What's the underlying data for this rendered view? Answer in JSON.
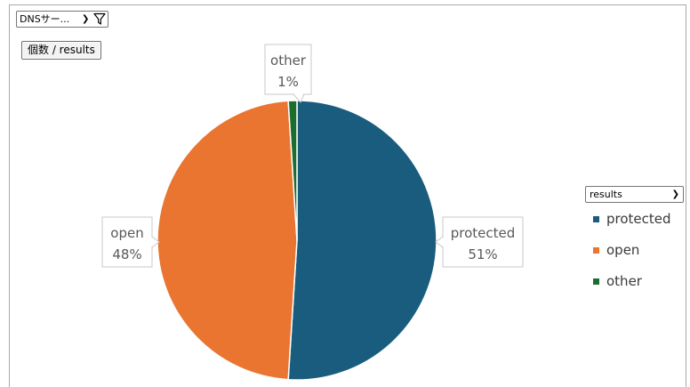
{
  "filter_field": {
    "label": "DNSサー...",
    "chevron_icon": "chevron-down-icon",
    "filter_icon": "funnel-icon"
  },
  "value_field": {
    "label": "個数 / results"
  },
  "series_field": {
    "label": "results",
    "chevron_icon": "chevron-down-icon"
  },
  "chart_data": {
    "type": "pie",
    "categories": [
      "protected",
      "open",
      "other"
    ],
    "values": [
      51,
      48,
      1
    ],
    "data_labels": [
      "51%",
      "48%",
      "1%"
    ],
    "colors": [
      "#1a5c7e",
      "#e97531",
      "#1c6e2f"
    ],
    "legend_position": "right"
  }
}
